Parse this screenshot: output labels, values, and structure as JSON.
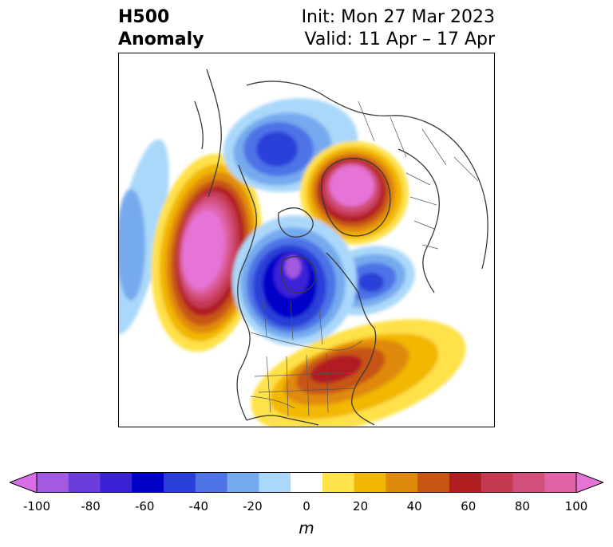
{
  "title": {
    "left_line1": "H500",
    "left_line2": "Anomaly",
    "right_line1": "Init: Mon 27 Mar 2023",
    "right_line2": "Valid: 11 Apr – 17 Apr"
  },
  "colorbar": {
    "unit": "m",
    "ticks": [
      "-100",
      "-80",
      "-60",
      "-40",
      "-20",
      "0",
      "20",
      "40",
      "60",
      "80",
      "100"
    ],
    "colors": [
      "#d96ee6",
      "#a25ae0",
      "#6a3ddb",
      "#3a22d4",
      "#0000c8",
      "#2a3fd8",
      "#4d73e6",
      "#76aaee",
      "#aad8fa",
      "#ffffff",
      "#ffe14a",
      "#f2b705",
      "#e08a0c",
      "#c75614",
      "#b01e22",
      "#c43a52",
      "#d1507a",
      "#de62a6",
      "#e673d6"
    ]
  },
  "map": {
    "projection": "polar stereographic, North Pole",
    "features": [
      {
        "name": "positive-anomaly-ne-pacific",
        "peak": 100
      },
      {
        "name": "positive-anomaly-greenland-arctic",
        "peak": 100
      },
      {
        "name": "positive-anomaly-eastern-us",
        "peak": 60
      },
      {
        "name": "negative-anomaly-central-canada",
        "peak": -60
      },
      {
        "name": "negative-anomaly-siberia",
        "peak": -60
      },
      {
        "name": "negative-anomaly-north-atlantic",
        "peak": -60
      },
      {
        "name": "negative-anomaly-west-pacific",
        "peak": -40
      }
    ]
  }
}
